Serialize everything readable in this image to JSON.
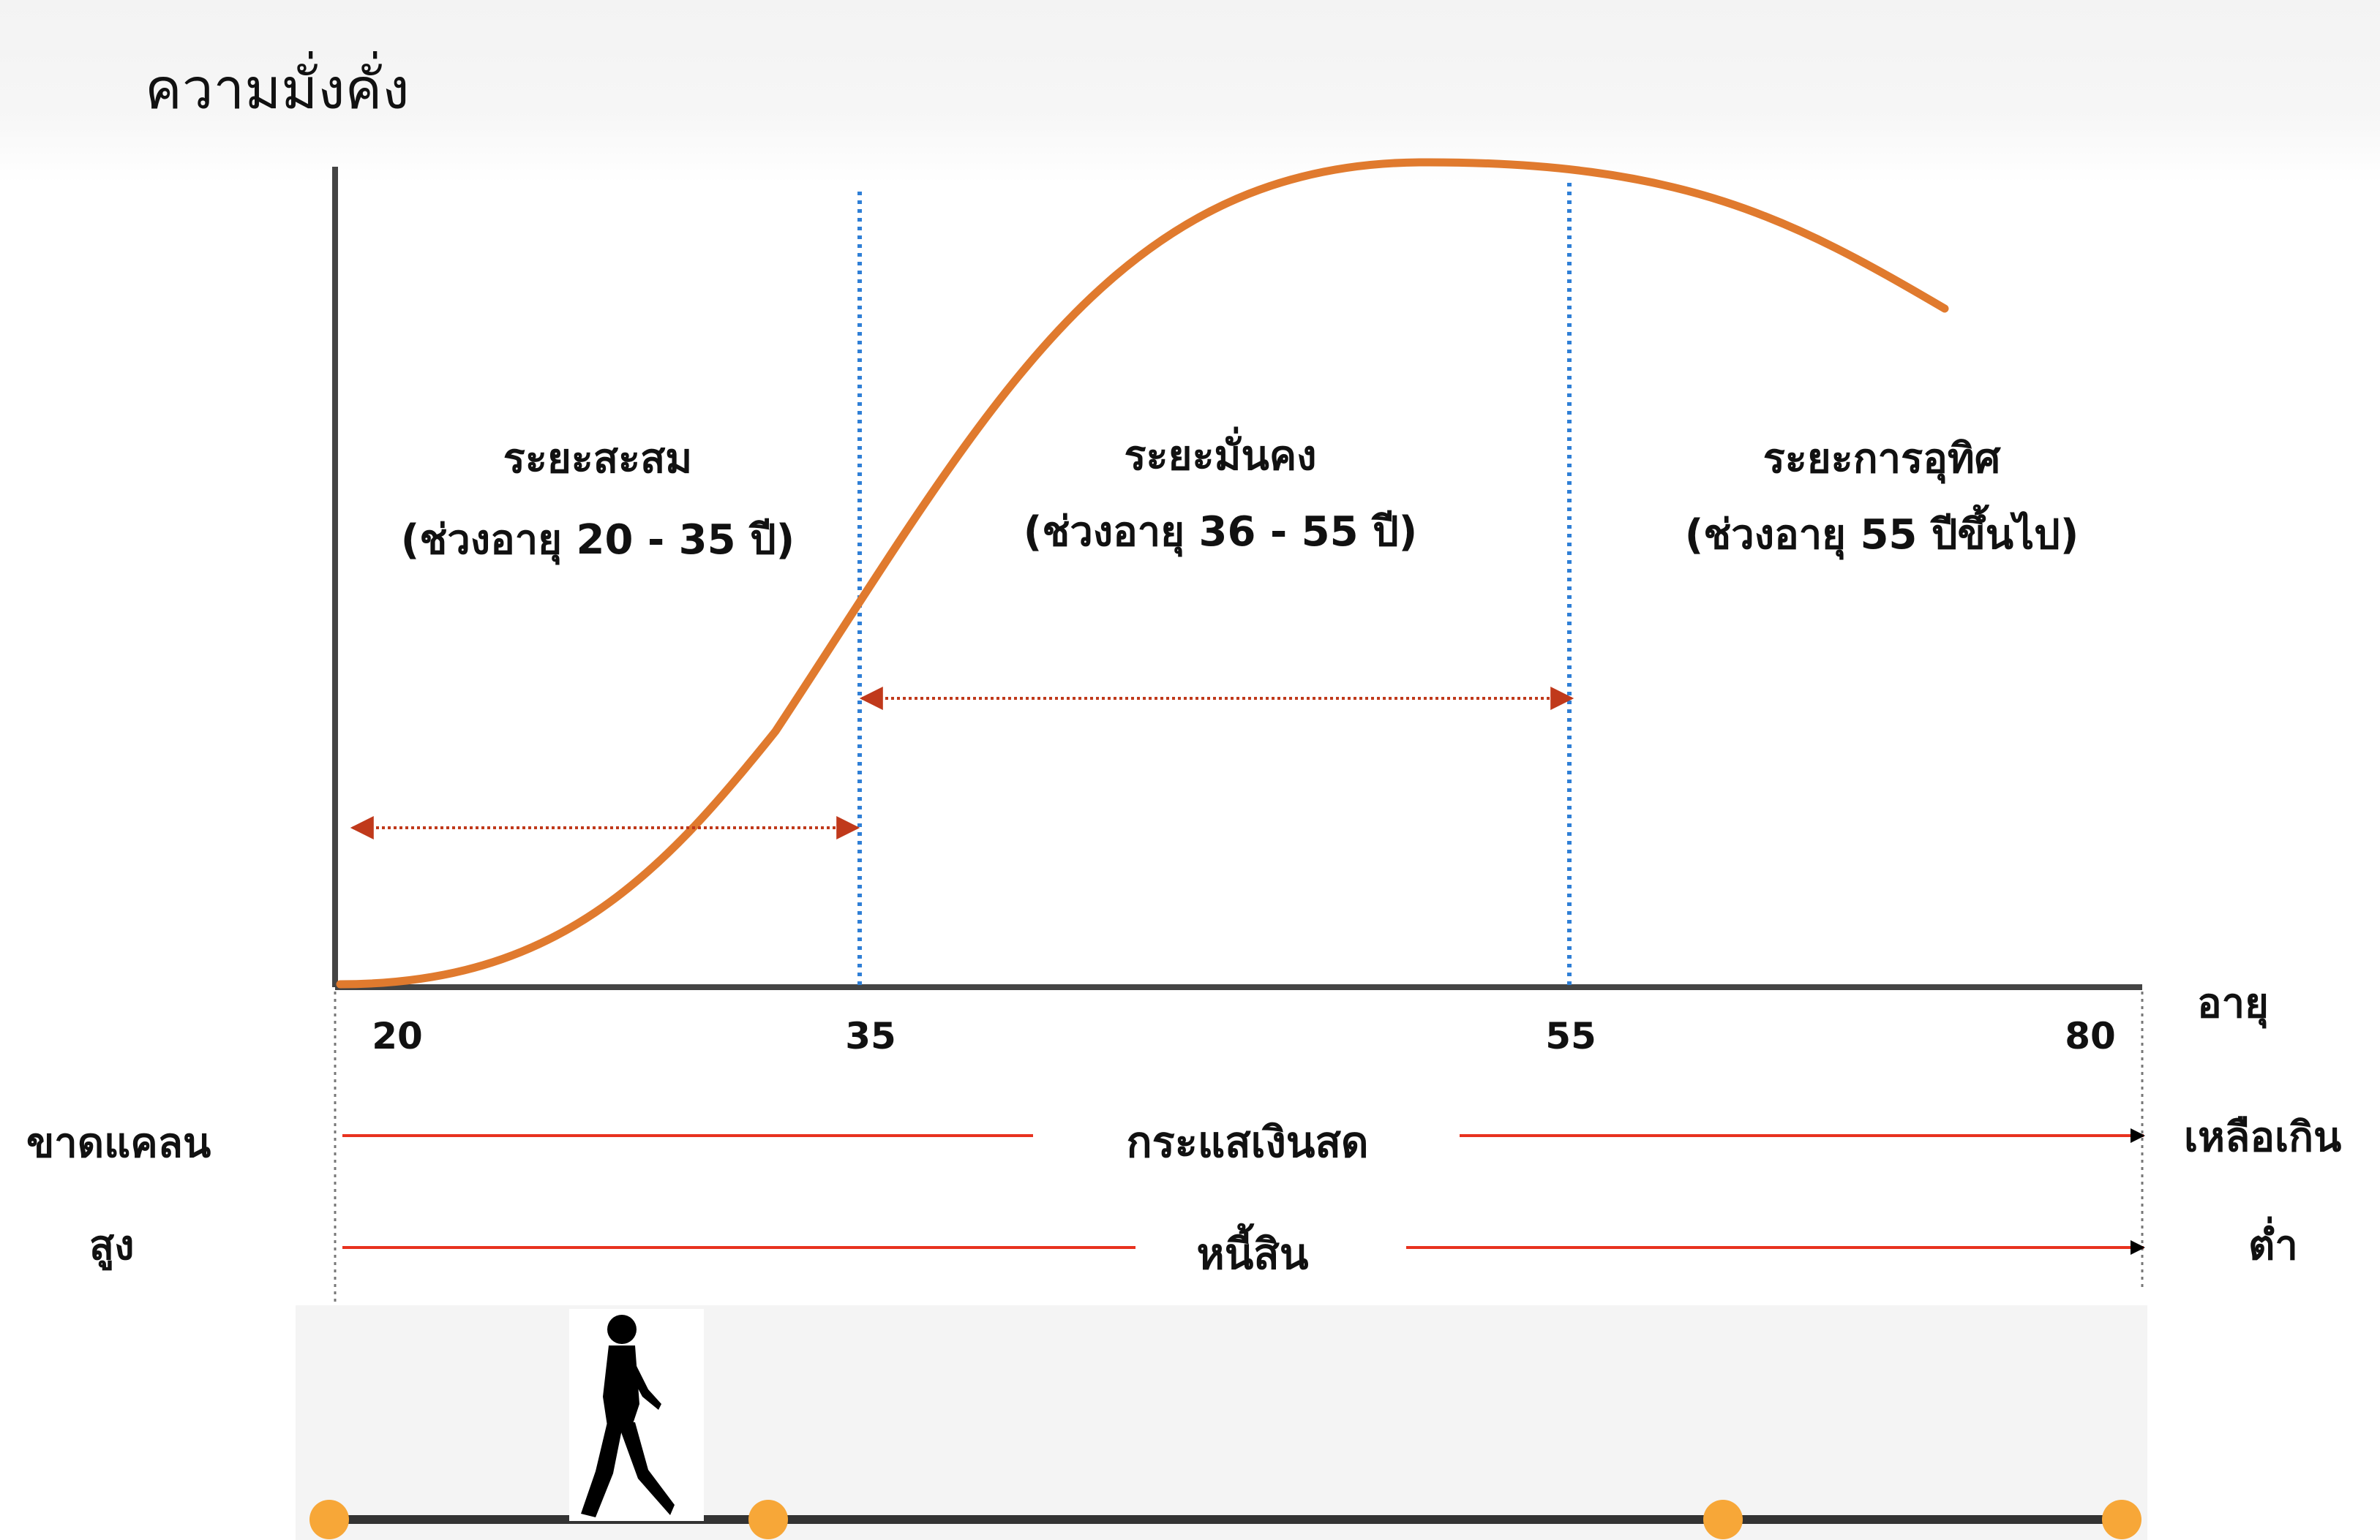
{
  "title": "ความมั่งคั่ง",
  "axis": {
    "x_label": "อายุ",
    "ticks": [
      "20",
      "35",
      "55",
      "80"
    ]
  },
  "zones": [
    {
      "name": "ระยะสะสม",
      "range": "(ช่วงอายุ 20 - 35 ปี)"
    },
    {
      "name": "ระยะมั่นคง",
      "range": "(ช่วงอายุ 36 - 55 ปี)"
    },
    {
      "name": "ระยะการอุทิศ",
      "range": "(ช่วงอายุ 55 ปีขึ้นไป)"
    }
  ],
  "cashflow": {
    "label": "กระแสเงินสด",
    "left": "ขาดแคลน",
    "right": "เหลือเกิน"
  },
  "debt": {
    "label": "หนี้สิน",
    "left": "สูง",
    "right": "ต่ำ"
  },
  "colors": {
    "curve": "#e07a2e",
    "boundary": "#2f7fd6",
    "range_arrow": "#c0391b",
    "flow_line": "#e8321f",
    "axis": "#444444",
    "milestone": "#f7a738",
    "timeline": "#333333"
  },
  "icons": [
    "walking-person-icon",
    "milestone-dot-icon"
  ]
}
